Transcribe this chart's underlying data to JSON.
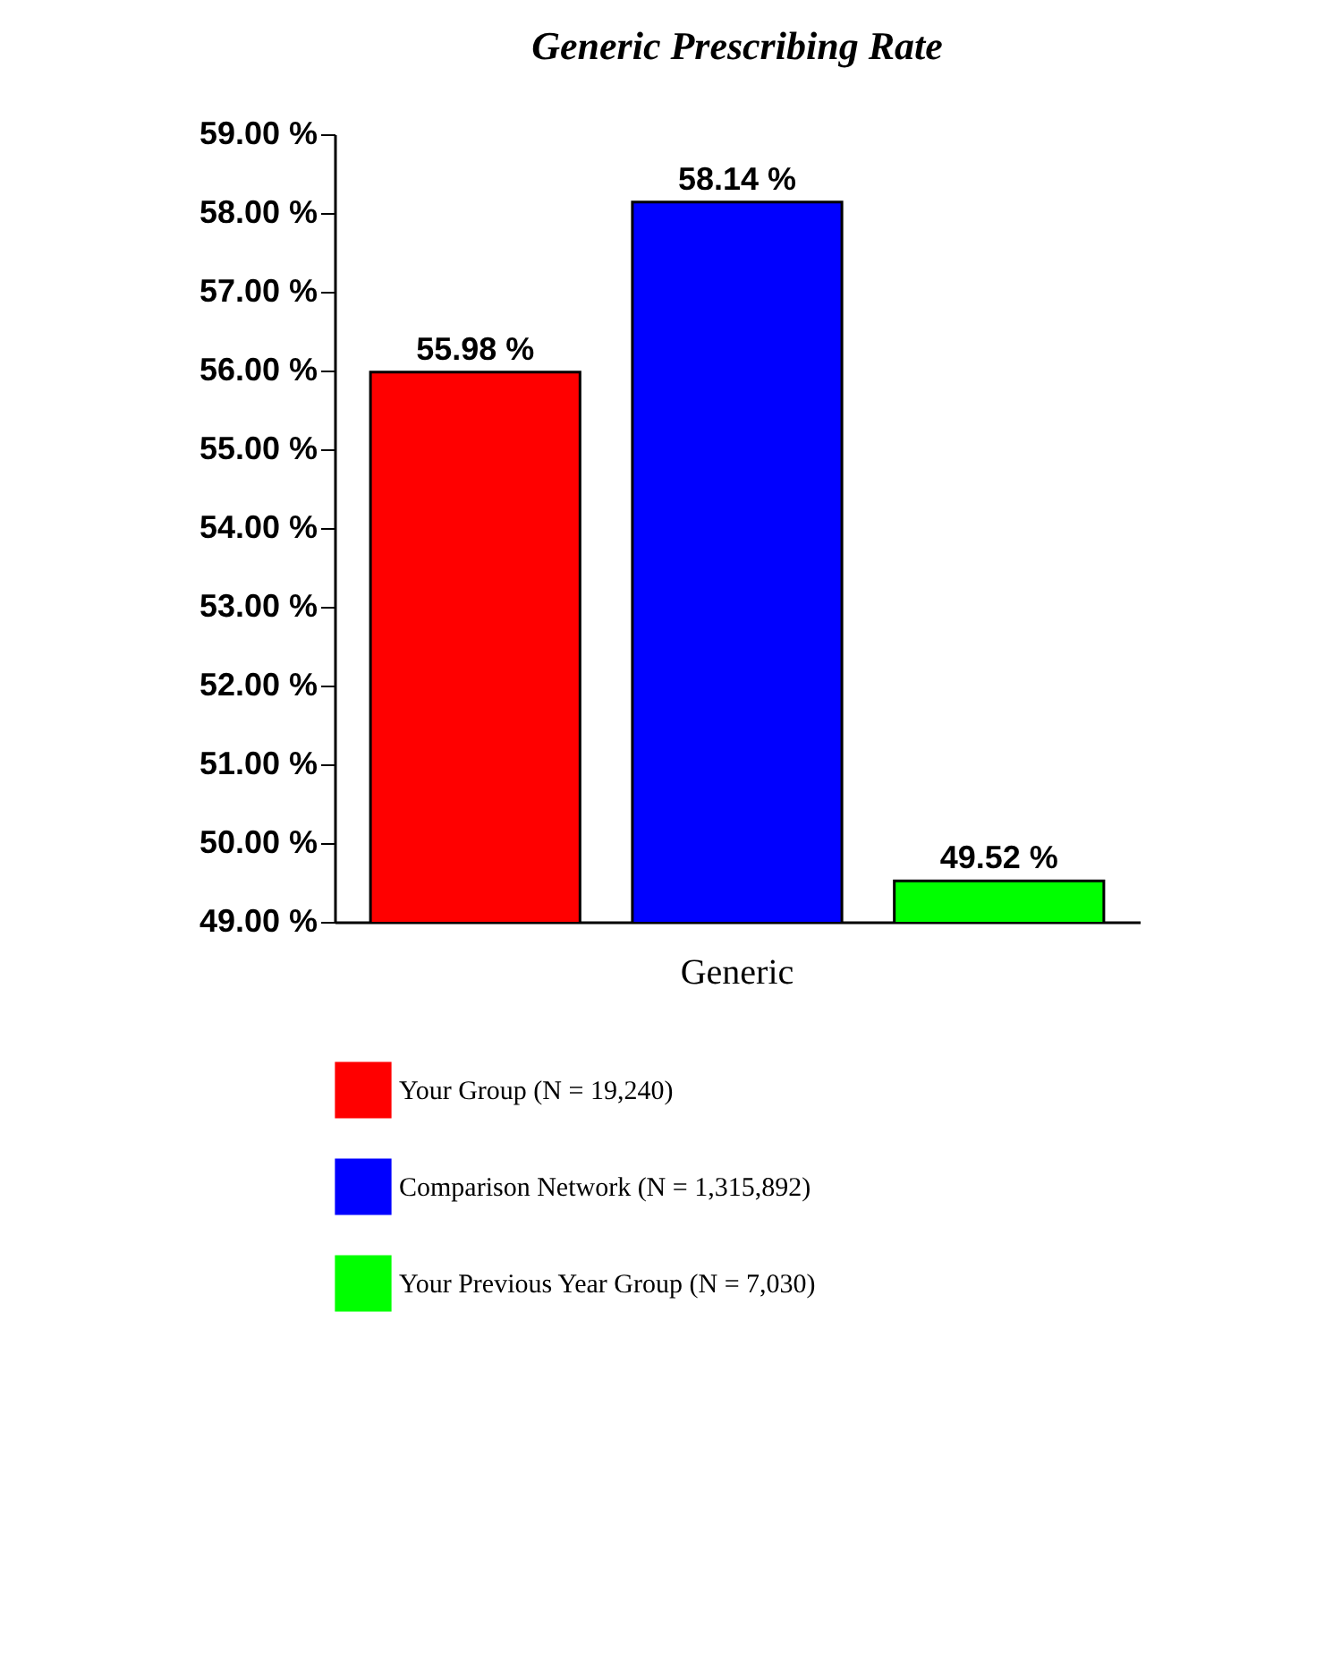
{
  "chart_data": {
    "type": "bar",
    "title": "Generic Prescribing Rate",
    "categories": [
      "Generic"
    ],
    "series": [
      {
        "name": "Your Group (N = 19,240)",
        "color": "#ff0000",
        "values": [
          55.98
        ],
        "value_labels": [
          "55.98 %"
        ]
      },
      {
        "name": "Comparison Network (N = 1,315,892)",
        "color": "#0000ff",
        "values": [
          58.14
        ],
        "value_labels": [
          "58.14 %"
        ]
      },
      {
        "name": "Your Previous Year Group (N = 7,030)",
        "color": "#00ff00",
        "values": [
          49.52
        ],
        "value_labels": [
          "49.52 %"
        ]
      }
    ],
    "ylim": [
      49,
      59
    ],
    "yticks": [
      {
        "value": 49,
        "label": "49.00 %"
      },
      {
        "value": 50,
        "label": "50.00 %"
      },
      {
        "value": 51,
        "label": "51.00 %"
      },
      {
        "value": 52,
        "label": "52.00 %"
      },
      {
        "value": 53,
        "label": "53.00 %"
      },
      {
        "value": 54,
        "label": "54.00 %"
      },
      {
        "value": 55,
        "label": "55.00 %"
      },
      {
        "value": 56,
        "label": "56.00 %"
      },
      {
        "value": 57,
        "label": "57.00 %"
      },
      {
        "value": 58,
        "label": "58.00 %"
      },
      {
        "value": 59,
        "label": "59.00 %"
      }
    ],
    "grid": false,
    "legend": "bottom"
  }
}
